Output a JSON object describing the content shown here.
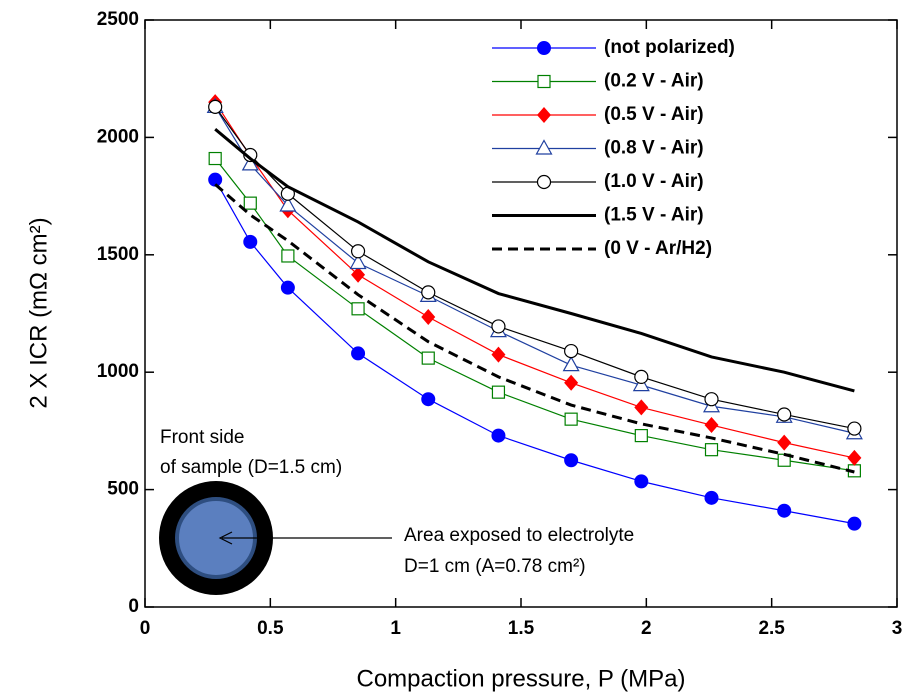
{
  "chart_data": {
    "type": "line",
    "x_label": "Compaction pressure, P (MPa)",
    "y_label": "2 X ICR (mΩ cm²)",
    "x": [
      0.28,
      0.42,
      0.57,
      0.85,
      1.13,
      1.41,
      1.7,
      1.98,
      2.26,
      2.55,
      2.83
    ],
    "xlim": [
      0,
      3
    ],
    "xticks": [
      0,
      0.5,
      1,
      1.5,
      2,
      2.5,
      3
    ],
    "ylim": [
      0,
      2500
    ],
    "yticks": [
      0,
      500,
      1000,
      1500,
      2000,
      2500
    ],
    "legend": "upper right",
    "series": [
      {
        "name": "(not polarized)",
        "color": "#0000ff",
        "marker": "circle-filled",
        "values": [
          1820,
          1555,
          1360,
          1080,
          885,
          730,
          625,
          535,
          465,
          410,
          355
        ]
      },
      {
        "name": "(0.2 V - Air)",
        "color": "#008000",
        "marker": "square-open",
        "values": [
          1910,
          1720,
          1495,
          1270,
          1060,
          915,
          800,
          730,
          670,
          625,
          580
        ]
      },
      {
        "name": "(0.5 V - Air)",
        "color": "#ff0000",
        "marker": "diamond-filled",
        "values": [
          2150,
          1920,
          1690,
          1415,
          1235,
          1075,
          955,
          850,
          775,
          700,
          635
        ]
      },
      {
        "name": "(0.8 V - Air)",
        "color": "#2040a0",
        "marker": "triangle-open",
        "values": [
          2130,
          1885,
          1710,
          1465,
          1325,
          1175,
          1030,
          945,
          855,
          810,
          740
        ]
      },
      {
        "name": "(1.0 V - Air)",
        "color": "#000000",
        "marker": "circle-open",
        "values": [
          2130,
          1925,
          1760,
          1515,
          1340,
          1195,
          1090,
          980,
          885,
          820,
          760
        ]
      },
      {
        "name": "(1.5 V - Air)",
        "color": "#000000",
        "marker": "none",
        "width": 3,
        "values": [
          2035,
          1910,
          1790,
          1640,
          1470,
          1335,
          1250,
          1165,
          1065,
          1000,
          920
        ]
      },
      {
        "name": "(0 V - Ar/H2)",
        "color": "#000000",
        "marker": "none",
        "dash": true,
        "width": 3,
        "values": [
          1800,
          1670,
          1560,
          1330,
          1130,
          980,
          860,
          780,
          720,
          650,
          575
        ]
      }
    ],
    "annotations": [
      "Front side",
      "of sample (D=1.5 cm)",
      "Area exposed to electrolyte",
      "D=1 cm  (A=0.78 cm²)"
    ]
  }
}
